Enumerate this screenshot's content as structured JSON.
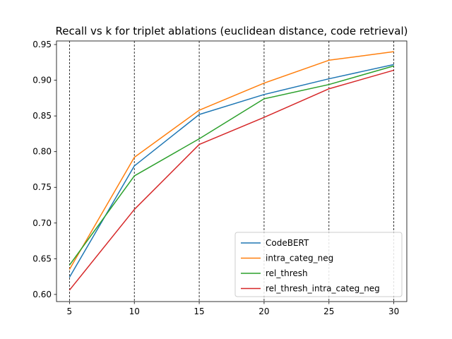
{
  "chart_data": {
    "type": "line",
    "title": "Recall vs k for triplet ablations (euclidean distance, code retrieval)",
    "xlabel": "",
    "ylabel": "",
    "x": [
      5,
      10,
      15,
      20,
      25,
      30
    ],
    "xlim": [
      4,
      31
    ],
    "ylim": [
      0.59,
      0.955
    ],
    "xticks": [
      5,
      10,
      15,
      20,
      25,
      30
    ],
    "yticks": [
      0.6,
      0.65,
      0.7,
      0.75,
      0.8,
      0.85,
      0.9,
      0.95
    ],
    "grid": "vertical dashed lines at x ticks",
    "legend_position": "lower-right",
    "series": [
      {
        "name": "CodeBERT",
        "color": "#1f77b4",
        "values": [
          0.624,
          0.78,
          0.852,
          0.88,
          0.902,
          0.922
        ]
      },
      {
        "name": "intra_categ_neg",
        "color": "#ff7f0e",
        "values": [
          0.635,
          0.792,
          0.858,
          0.896,
          0.928,
          0.94
        ]
      },
      {
        "name": "rel_thresh",
        "color": "#2ca02c",
        "values": [
          0.641,
          0.766,
          0.818,
          0.874,
          0.894,
          0.92
        ]
      },
      {
        "name": "rel_thresh_intra_categ_neg",
        "color": "#d62728",
        "values": [
          0.606,
          0.719,
          0.81,
          0.848,
          0.888,
          0.914
        ]
      }
    ]
  }
}
